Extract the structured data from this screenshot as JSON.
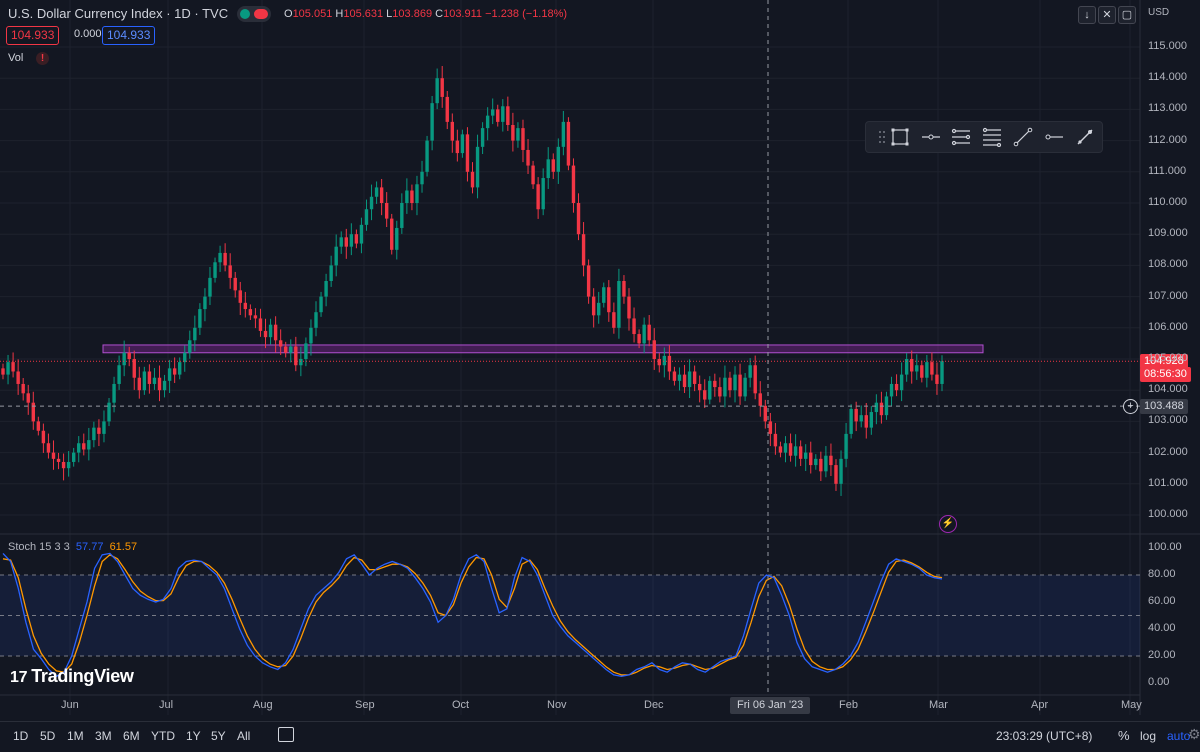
{
  "header": {
    "title": "U.S. Dollar Currency Index · 1D · TVC",
    "ohlc": {
      "o_label": "O",
      "o": "105.051",
      "h_label": "H",
      "h": "105.631",
      "l_label": "L",
      "l": "103.869",
      "c_label": "C",
      "c": "103.911",
      "change": "−1.238 (−1.18%)"
    },
    "price_boxes": [
      "104.933",
      "0.000",
      "104.933"
    ],
    "vol_label": "Vol",
    "vol_warning": "!",
    "currency": "USD"
  },
  "y_axis": {
    "labels": [
      "115.000",
      "114.000",
      "113.000",
      "112.000",
      "111.000",
      "110.000",
      "109.000",
      "108.000",
      "107.000",
      "106.000",
      "105.000",
      "104.000",
      "103.000",
      "102.000",
      "101.000",
      "100.000"
    ]
  },
  "price_tags": {
    "last": "104.928",
    "countdown": "08:56:30",
    "crosshair": "103.488"
  },
  "stoch": {
    "label": "Stoch 15 3 3",
    "k": "57.77",
    "d": "61.57",
    "y_labels": [
      "100.00",
      "80.00",
      "60.00",
      "40.00",
      "20.00",
      "0.00"
    ]
  },
  "x_axis": {
    "labels": [
      "Jun",
      "Jul",
      "Aug",
      "Sep",
      "Oct",
      "Nov",
      "Dec",
      "Feb",
      "Mar",
      "Apr",
      "May"
    ],
    "crosshair_date": "Fri 06 Jan '23"
  },
  "logo": {
    "mark": "17",
    "text": "TradingView"
  },
  "bottom_bar": {
    "timeframes": [
      "1D",
      "5D",
      "1M",
      "3M",
      "6M",
      "YTD",
      "1Y",
      "5Y",
      "All"
    ],
    "clock": "23:03:29 (UTC+8)",
    "percent": "%",
    "log": "log",
    "auto": "auto"
  },
  "colors": {
    "up": "#089981",
    "down": "#f23645",
    "zone": "#9c27b0",
    "stoch_k": "#2962ff",
    "stoch_d": "#ff9800",
    "bg": "#131722"
  },
  "icons": [
    "drag-handle-icon",
    "rectangle-icon",
    "horizontal-line-icon",
    "parallel-channel-icon",
    "fib-retracement-icon",
    "trend-line-icon",
    "horizontal-ray-icon",
    "brush-icon",
    "calendar-icon",
    "settings-gear-icon",
    "lightning-icon",
    "plus-circle-icon"
  ],
  "chart_data": {
    "type": "candlestick",
    "symbol": "U.S. Dollar Currency Index",
    "interval": "1D",
    "ylim": [
      100,
      115
    ],
    "closes": [
      104.5,
      104.9,
      104.6,
      104.2,
      103.9,
      103.6,
      103.0,
      102.7,
      102.3,
      102.0,
      101.8,
      101.7,
      101.5,
      101.7,
      102.0,
      102.3,
      102.1,
      102.4,
      102.8,
      102.6,
      103.0,
      103.6,
      104.2,
      104.8,
      105.2,
      105.0,
      104.4,
      104.0,
      104.6,
      104.2,
      104.4,
      104.0,
      104.3,
      104.7,
      104.5,
      104.9,
      105.2,
      105.6,
      106.0,
      106.6,
      107.0,
      107.6,
      108.1,
      108.4,
      108.0,
      107.6,
      107.2,
      106.8,
      106.6,
      106.4,
      106.3,
      105.9,
      105.7,
      106.1,
      105.6,
      105.4,
      105.2,
      105.4,
      104.8,
      105.0,
      105.5,
      106.0,
      106.5,
      107.0,
      107.5,
      108.0,
      108.6,
      108.9,
      108.6,
      109.0,
      108.7,
      109.3,
      109.8,
      110.2,
      110.5,
      110.0,
      109.5,
      108.5,
      109.2,
      110.0,
      110.4,
      110.0,
      110.6,
      111.0,
      112.0,
      113.2,
      114.0,
      113.4,
      112.6,
      112.0,
      111.6,
      112.2,
      111.0,
      110.5,
      111.8,
      112.4,
      112.8,
      113.0,
      112.6,
      113.1,
      112.5,
      112.0,
      112.4,
      111.7,
      111.2,
      110.6,
      109.8,
      110.8,
      111.4,
      111.0,
      111.8,
      112.6,
      111.2,
      110.0,
      109.0,
      108.0,
      107.0,
      106.4,
      106.8,
      107.3,
      106.5,
      106.0,
      107.5,
      107.0,
      106.3,
      105.8,
      105.5,
      106.1,
      105.6,
      105.0,
      104.8,
      105.1,
      104.6,
      104.3,
      104.5,
      104.1,
      104.6,
      104.2,
      104.0,
      103.7,
      104.3,
      104.1,
      103.8,
      104.4,
      104.0,
      104.5,
      103.8,
      104.4,
      104.8,
      103.9,
      103.5,
      103.0,
      102.6,
      102.2,
      102.0,
      102.3,
      101.9,
      102.2,
      101.8,
      102.0,
      101.6,
      101.8,
      101.4,
      101.9,
      101.6,
      101.0,
      101.8,
      102.6,
      103.4,
      103.0,
      103.2,
      102.8,
      103.3,
      103.6,
      103.2,
      103.8,
      104.2,
      104.0,
      104.5,
      105.0,
      104.6,
      104.8,
      104.4,
      104.9,
      104.5,
      104.2,
      104.93
    ],
    "resistance_zone": [
      105.2,
      105.45
    ],
    "last_price": 104.928,
    "crosshair_price": 103.488,
    "stoch_levels": [
      80,
      50,
      20
    ],
    "stoch_k": [
      96,
      90,
      70,
      45,
      25,
      18,
      10,
      5,
      8,
      20,
      40,
      60,
      85,
      95,
      96,
      90,
      80,
      70,
      65,
      62,
      60,
      62,
      70,
      85,
      90,
      91,
      90,
      85,
      80,
      70,
      55,
      40,
      28,
      20,
      15,
      12,
      10,
      15,
      25,
      40,
      55,
      65,
      70,
      75,
      82,
      92,
      95,
      88,
      80,
      85,
      88,
      90,
      88,
      85,
      78,
      70,
      60,
      45,
      50,
      62,
      80,
      92,
      95,
      90,
      70,
      52,
      55,
      78,
      93,
      90,
      80,
      65,
      50,
      42,
      35,
      30,
      25,
      20,
      15,
      10,
      6,
      5,
      6,
      10,
      12,
      15,
      10,
      8,
      12,
      15,
      14,
      10,
      8,
      12,
      16,
      18,
      20,
      35,
      55,
      74,
      80,
      78,
      65,
      50,
      30,
      18,
      12,
      10,
      8,
      10,
      14,
      20,
      30,
      45,
      60,
      75,
      88,
      92,
      90,
      88,
      85,
      80,
      78,
      77
    ],
    "stoch_d": [
      92,
      91,
      78,
      55,
      35,
      22,
      14,
      9,
      8,
      14,
      30,
      50,
      72,
      90,
      95,
      92,
      84,
      75,
      68,
      64,
      61,
      61,
      66,
      78,
      87,
      90,
      90,
      87,
      82,
      74,
      62,
      48,
      35,
      25,
      18,
      14,
      12,
      13,
      20,
      33,
      48,
      60,
      67,
      72,
      78,
      87,
      93,
      91,
      84,
      84,
      86,
      88,
      88,
      86,
      81,
      74,
      65,
      52,
      50,
      58,
      74,
      86,
      93,
      92,
      80,
      62,
      56,
      70,
      88,
      91,
      84,
      70,
      57,
      46,
      38,
      32,
      27,
      22,
      17,
      12,
      8,
      6,
      6,
      8,
      11,
      13,
      12,
      10,
      11,
      13,
      14,
      12,
      10,
      11,
      14,
      17,
      19,
      28,
      45,
      64,
      76,
      79,
      72,
      58,
      40,
      25,
      16,
      12,
      10,
      10,
      12,
      17,
      25,
      38,
      52,
      67,
      82,
      90,
      91,
      89,
      86,
      82,
      79,
      78
    ]
  }
}
